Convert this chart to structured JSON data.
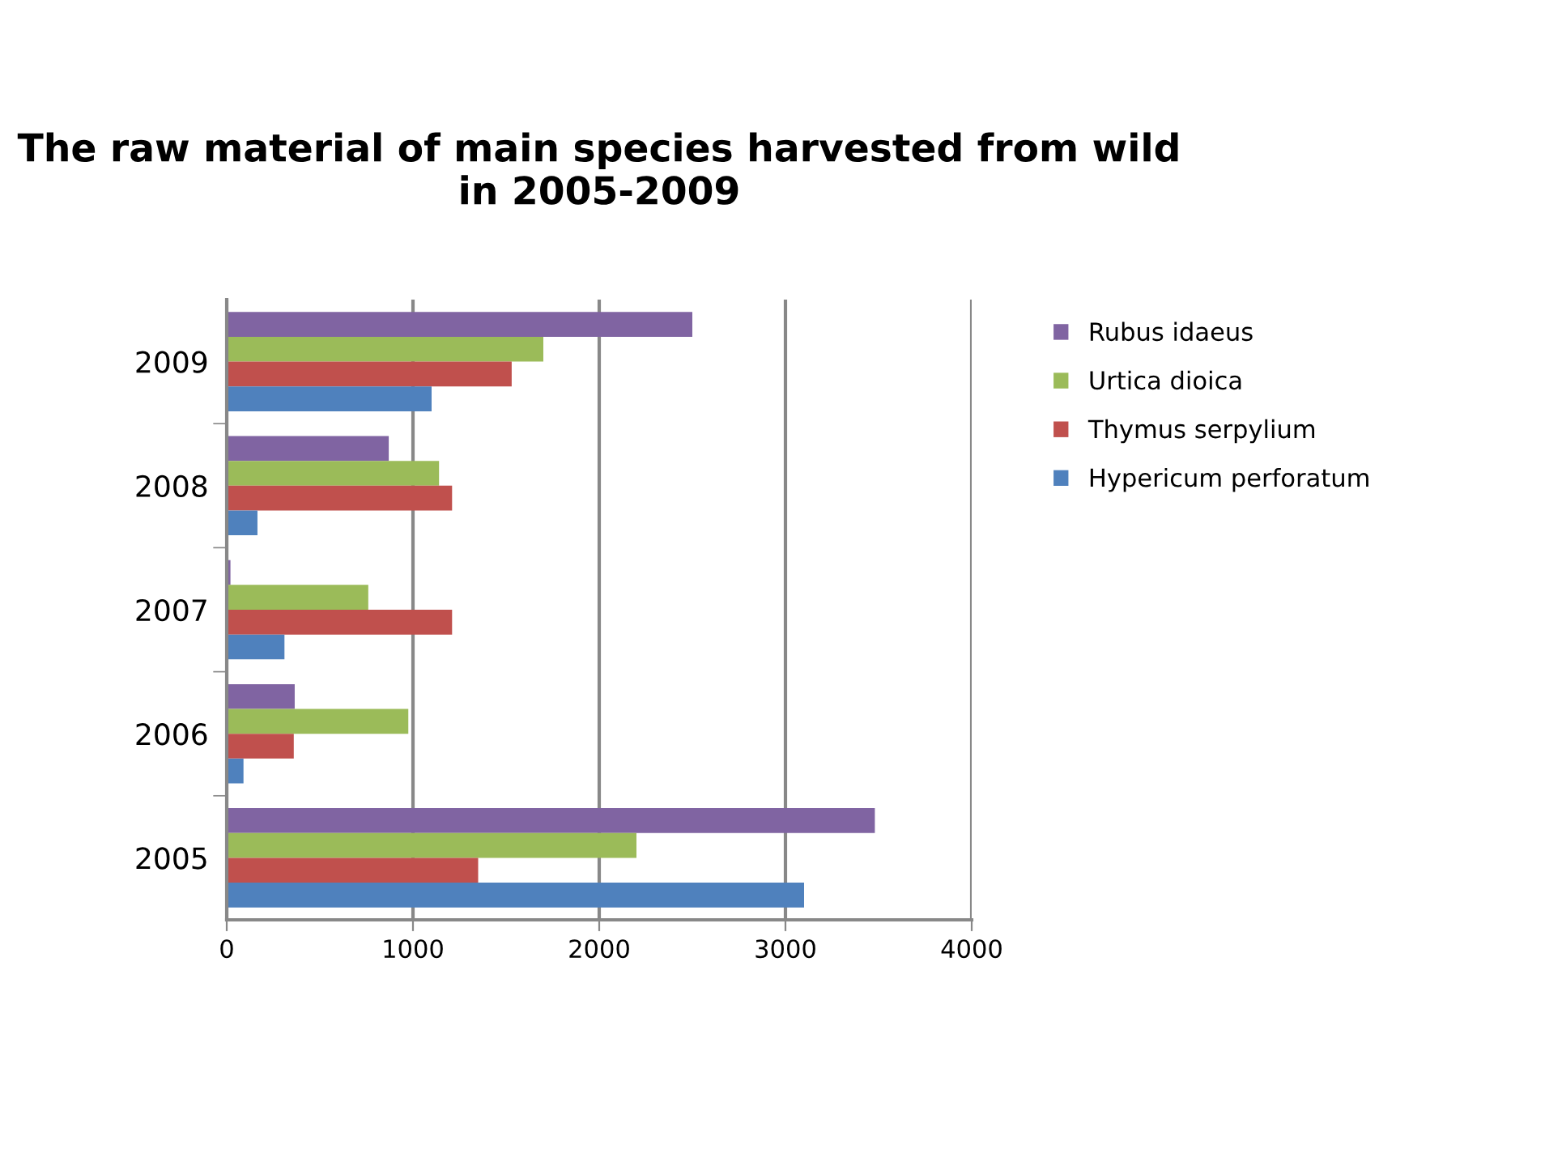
{
  "chart_data": {
    "type": "bar",
    "orientation": "horizontal",
    "title": "The raw material of main species harvested from wild in 2005-2009",
    "categories": [
      "2009",
      "2008",
      "2007",
      "2006",
      "2005"
    ],
    "series": [
      {
        "name": "Rubus idaeus",
        "color": "#8064a2",
        "values": [
          2500,
          870,
          20,
          365,
          3480
        ]
      },
      {
        "name": "Urtica dioica",
        "color": "#9bbb59",
        "values": [
          1700,
          1140,
          760,
          975,
          2200
        ]
      },
      {
        "name": "Thymus serpylium",
        "color": "#c0504d",
        "values": [
          1530,
          1210,
          1210,
          360,
          1350
        ]
      },
      {
        "name": "Hypericum perforatum",
        "color": "#4f81bd",
        "values": [
          1100,
          165,
          310,
          90,
          3100
        ]
      }
    ],
    "xlim": [
      0,
      4000
    ],
    "xticks": [
      0,
      1000,
      2000,
      3000,
      4000
    ],
    "grid": "x",
    "legend": "top right"
  }
}
